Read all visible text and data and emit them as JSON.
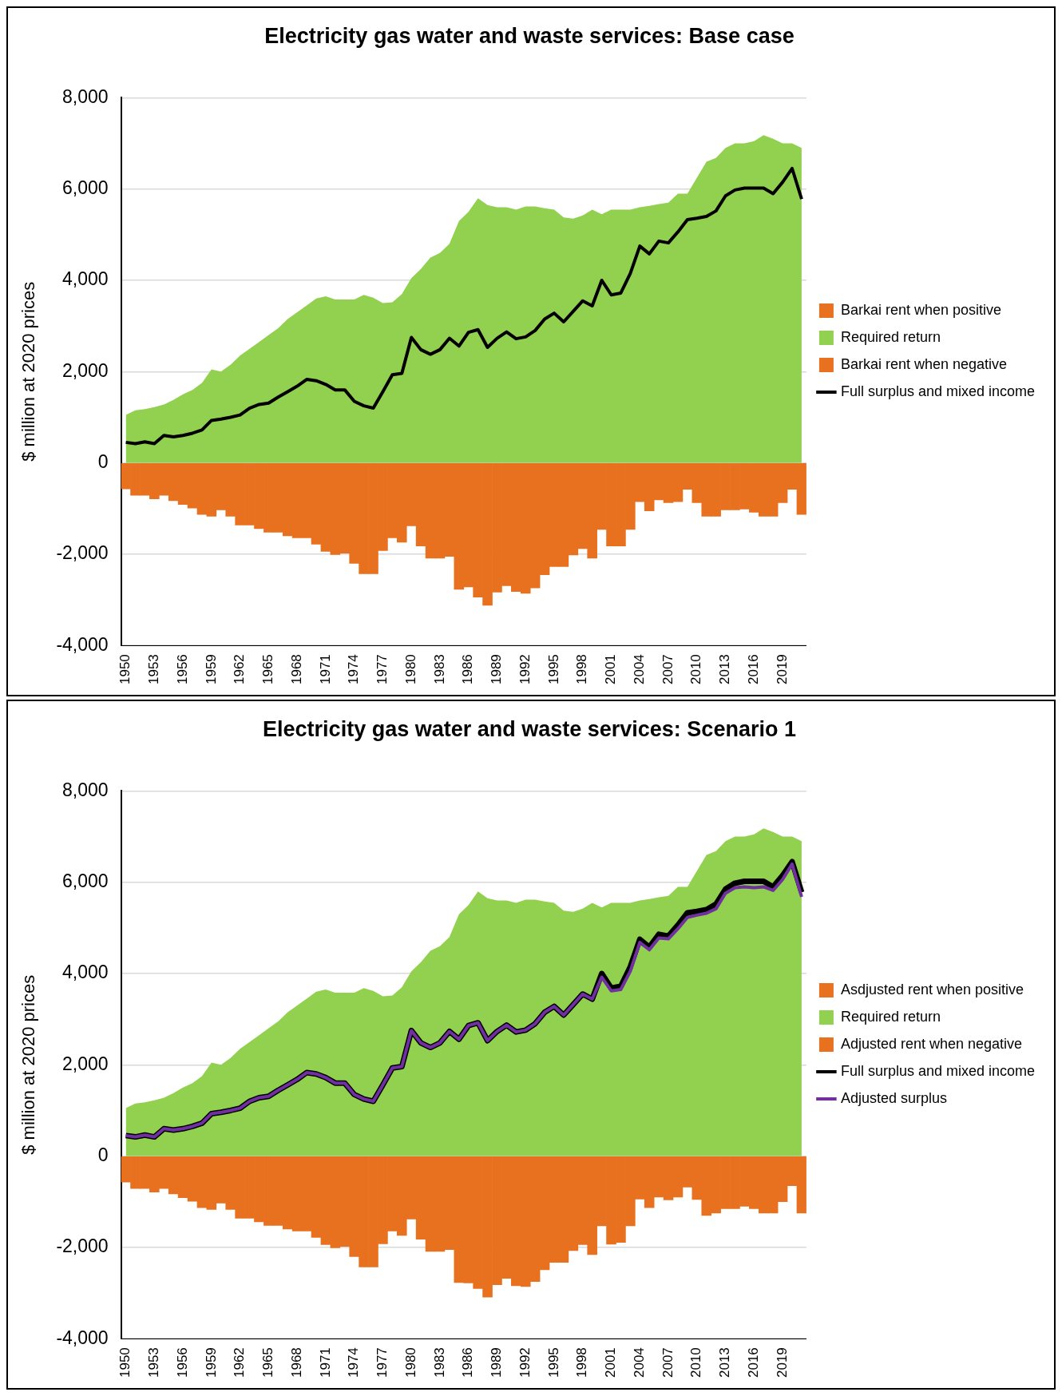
{
  "chart_data": [
    {
      "type": "area",
      "title": "Electricity gas water and waste services: Base case",
      "ylabel": "$ million at 2020 prices",
      "categories": [
        "1950",
        null,
        null,
        "1953",
        null,
        null,
        "1956",
        null,
        null,
        "1959",
        null,
        null,
        "1962",
        null,
        null,
        "1965",
        null,
        null,
        "1968",
        null,
        null,
        "1971",
        null,
        null,
        "1974",
        null,
        null,
        "1977",
        null,
        null,
        "1980",
        null,
        null,
        "1983",
        null,
        null,
        "1986",
        null,
        null,
        "1989",
        null,
        null,
        "1992",
        null,
        null,
        "1995",
        null,
        null,
        "1998",
        null,
        null,
        "2001",
        null,
        null,
        "2004",
        null,
        null,
        "2007",
        null,
        null,
        "2010",
        null,
        null,
        "2013",
        null,
        null,
        "2016",
        null,
        null,
        "2019",
        null,
        null
      ],
      "ylim": [
        -4000,
        8000
      ],
      "yticks": [
        {
          "value": -4000,
          "label": "-4,000"
        },
        {
          "value": -2000,
          "label": "-2,000"
        },
        0,
        {
          "value": 2000,
          "label": "2,000"
        },
        {
          "value": 4000,
          "label": "4,000"
        },
        {
          "value": 6000,
          "label": "6,000"
        },
        {
          "value": 8000,
          "label": "8,000"
        }
      ],
      "grid": "y",
      "legend": "right",
      "stacked": true,
      "marker": "none",
      "line_style": "solid",
      "series": [
        {
          "name": "Barkai rent when positive",
          "type": "bar",
          "color": "#e8711f",
          "values": [
            null,
            null,
            null,
            null,
            null,
            null,
            null,
            null,
            null,
            null,
            null,
            null,
            null,
            null,
            null,
            null,
            null,
            null,
            null,
            null,
            null,
            null,
            null,
            null,
            null,
            null,
            null,
            null,
            null,
            null,
            null,
            null,
            null,
            null,
            null,
            null,
            null,
            null,
            null,
            null,
            null,
            null,
            null,
            null,
            null,
            null,
            null,
            null,
            null,
            null,
            null,
            null,
            null,
            null,
            null,
            null,
            null,
            null,
            null,
            null,
            null,
            null,
            null,
            null,
            null,
            null,
            null,
            null,
            null,
            null,
            null,
            null
          ]
        },
        {
          "name": "Required return",
          "color": "#92d050",
          "values": [
            1050,
            1150,
            1180,
            1220,
            1280,
            1380,
            1500,
            1600,
            1750,
            2050,
            2000,
            2150,
            2350,
            2500,
            2650,
            2800,
            2950,
            3150,
            3300,
            3450,
            3600,
            3650,
            3580,
            3580,
            3580,
            3680,
            3620,
            3500,
            3520,
            3700,
            4050,
            4250,
            4500,
            4600,
            4800,
            5300,
            5500,
            5800,
            5650,
            5600,
            5600,
            5550,
            5620,
            5620,
            5580,
            5550,
            5380,
            5350,
            5420,
            5550,
            5450,
            5550,
            5550,
            5550,
            5600,
            5630,
            5670,
            5700,
            5900,
            5900,
            6250,
            6600,
            6680,
            6900,
            7000,
            7000,
            7050,
            7180,
            7100,
            7000,
            7000,
            6900
          ]
        },
        {
          "name": "Barkai rent when negative",
          "type": "bar",
          "color": "#e8711f",
          "values": [
            -570,
            -710,
            -710,
            -790,
            -710,
            -830,
            -910,
            -990,
            -1130,
            -1170,
            -1030,
            -1170,
            -1360,
            -1360,
            -1440,
            -1520,
            -1520,
            -1600,
            -1640,
            -1640,
            -1780,
            -1940,
            -2010,
            -1980,
            -2200,
            -2430,
            -2430,
            -1920,
            -1640,
            -1740,
            -1380,
            -1820,
            -2090,
            -2090,
            -2050,
            -2770,
            -2720,
            -2940,
            -3120,
            -2830,
            -2690,
            -2820,
            -2860,
            -2740,
            -2450,
            -2270,
            -2270,
            -2020,
            -1880,
            -2090,
            -1460,
            -1820,
            -1820,
            -1460,
            -850,
            -1050,
            -810,
            -870,
            -850,
            -580,
            -870,
            -1170,
            -1170,
            -1030,
            -1030,
            -1010,
            -1080,
            -1170,
            -1170,
            -870,
            -580,
            -1130
          ]
        },
        {
          "name": "Full surplus and mixed income",
          "type": "line",
          "color": "#000000",
          "values": [
            450,
            420,
            460,
            420,
            600,
            570,
            600,
            650,
            720,
            930,
            960,
            1000,
            1050,
            1200,
            1280,
            1310,
            1440,
            1560,
            1680,
            1830,
            1800,
            1720,
            1600,
            1600,
            1350,
            1250,
            1200,
            1560,
            1930,
            1960,
            2750,
            2480,
            2380,
            2480,
            2730,
            2560,
            2860,
            2920,
            2530,
            2730,
            2870,
            2720,
            2760,
            2900,
            3150,
            3280,
            3090,
            3320,
            3550,
            3440,
            4000,
            3680,
            3720,
            4150,
            4750,
            4580,
            4860,
            4820,
            5060,
            5330,
            5360,
            5400,
            5520,
            5850,
            5980,
            6020,
            6020,
            6020,
            5900,
            6150,
            6450,
            5780
          ]
        }
      ]
    },
    {
      "type": "area",
      "title": "Electricity gas water and waste services: Scenario 1",
      "ylabel": "$ million at 2020 prices",
      "categories": [
        "1950",
        null,
        null,
        "1953",
        null,
        null,
        "1956",
        null,
        null,
        "1959",
        null,
        null,
        "1962",
        null,
        null,
        "1965",
        null,
        null,
        "1968",
        null,
        null,
        "1971",
        null,
        null,
        "1974",
        null,
        null,
        "1977",
        null,
        null,
        "1980",
        null,
        null,
        "1983",
        null,
        null,
        "1986",
        null,
        null,
        "1989",
        null,
        null,
        "1992",
        null,
        null,
        "1995",
        null,
        null,
        "1998",
        null,
        null,
        "2001",
        null,
        null,
        "2004",
        null,
        null,
        "2007",
        null,
        null,
        "2010",
        null,
        null,
        "2013",
        null,
        null,
        "2016",
        null,
        null,
        "2019",
        null,
        null
      ],
      "ylim": [
        -4000,
        8000
      ],
      "yticks": [
        {
          "value": -4000,
          "label": "-4,000"
        },
        {
          "value": -2000,
          "label": "-2,000"
        },
        0,
        {
          "value": 2000,
          "label": "2,000"
        },
        {
          "value": 4000,
          "label": "4,000"
        },
        {
          "value": 6000,
          "label": "6,000"
        },
        {
          "value": 8000,
          "label": "8,000"
        }
      ],
      "grid": "y",
      "legend": "right",
      "stacked": true,
      "marker": "none",
      "line_style": "solid",
      "series": [
        {
          "name": "Asdjusted rent when positive",
          "type": "bar",
          "color": "#e8711f",
          "values": [
            null,
            null,
            null,
            null,
            null,
            null,
            null,
            null,
            null,
            null,
            null,
            null,
            null,
            null,
            null,
            null,
            null,
            null,
            null,
            null,
            null,
            null,
            null,
            null,
            null,
            null,
            null,
            null,
            null,
            null,
            null,
            null,
            null,
            null,
            null,
            null,
            null,
            null,
            null,
            null,
            null,
            null,
            null,
            null,
            null,
            null,
            null,
            null,
            null,
            null,
            null,
            null,
            null,
            null,
            null,
            null,
            null,
            null,
            null,
            null,
            null,
            null,
            null,
            null,
            null,
            null,
            null,
            null,
            null,
            null,
            null,
            null
          ]
        },
        {
          "name": "Required return",
          "color": "#92d050",
          "values": [
            1050,
            1150,
            1180,
            1220,
            1280,
            1380,
            1500,
            1600,
            1750,
            2050,
            2000,
            2150,
            2350,
            2500,
            2650,
            2800,
            2950,
            3150,
            3300,
            3450,
            3600,
            3650,
            3580,
            3580,
            3580,
            3680,
            3620,
            3500,
            3520,
            3700,
            4050,
            4250,
            4500,
            4600,
            4800,
            5300,
            5500,
            5800,
            5650,
            5600,
            5600,
            5550,
            5620,
            5620,
            5580,
            5550,
            5380,
            5350,
            5420,
            5550,
            5450,
            5550,
            5550,
            5550,
            5600,
            5630,
            5670,
            5700,
            5900,
            5900,
            6250,
            6600,
            6680,
            6900,
            7000,
            7000,
            7050,
            7180,
            7100,
            7000,
            7000,
            6900
          ]
        },
        {
          "name": "Adjusted rent when negative",
          "type": "bar",
          "color": "#e8711f",
          "values": [
            -570,
            -710,
            -710,
            -790,
            -710,
            -830,
            -910,
            -990,
            -1130,
            -1170,
            -1030,
            -1170,
            -1360,
            -1360,
            -1440,
            -1520,
            -1520,
            -1600,
            -1640,
            -1640,
            -1780,
            -1940,
            -2010,
            -1980,
            -2200,
            -2430,
            -2430,
            -1920,
            -1640,
            -1740,
            -1380,
            -1820,
            -2090,
            -2090,
            -2050,
            -2770,
            -2780,
            -2900,
            -3090,
            -2820,
            -2680,
            -2840,
            -2860,
            -2750,
            -2490,
            -2330,
            -2330,
            -2070,
            -1940,
            -2160,
            -1530,
            -1930,
            -1890,
            -1530,
            -940,
            -1130,
            -900,
            -960,
            -900,
            -680,
            -950,
            -1300,
            -1250,
            -1150,
            -1150,
            -1100,
            -1150,
            -1250,
            -1250,
            -1000,
            -650,
            -1250
          ]
        },
        {
          "name": "Full surplus and mixed income",
          "type": "line",
          "color": "#000000",
          "values": [
            450,
            420,
            460,
            420,
            600,
            570,
            600,
            650,
            720,
            930,
            960,
            1000,
            1050,
            1200,
            1280,
            1310,
            1440,
            1560,
            1680,
            1830,
            1800,
            1720,
            1600,
            1600,
            1350,
            1250,
            1200,
            1560,
            1930,
            1960,
            2750,
            2480,
            2380,
            2480,
            2730,
            2560,
            2860,
            2920,
            2530,
            2730,
            2870,
            2720,
            2760,
            2900,
            3150,
            3280,
            3090,
            3320,
            3550,
            3440,
            4000,
            3680,
            3720,
            4150,
            4750,
            4580,
            4860,
            4820,
            5060,
            5330,
            5360,
            5400,
            5520,
            5850,
            5980,
            6020,
            6020,
            6020,
            5900,
            6150,
            6450,
            5780
          ]
        },
        {
          "name": "Adjusted surplus",
          "type": "line",
          "color": "#7030a0",
          "values": [
            450,
            420,
            460,
            420,
            600,
            570,
            600,
            650,
            720,
            930,
            960,
            1000,
            1050,
            1200,
            1280,
            1310,
            1440,
            1560,
            1680,
            1830,
            1800,
            1720,
            1600,
            1600,
            1350,
            1250,
            1200,
            1560,
            1930,
            1960,
            2750,
            2480,
            2380,
            2480,
            2730,
            2560,
            2860,
            2920,
            2530,
            2730,
            2870,
            2720,
            2760,
            2900,
            3150,
            3280,
            3090,
            3320,
            3550,
            3440,
            3920,
            3620,
            3650,
            4050,
            4680,
            4520,
            4780,
            4760,
            4980,
            5230,
            5280,
            5320,
            5420,
            5760,
            5880,
            5900,
            5880,
            5900,
            5820,
            6060,
            6400,
            5680
          ]
        }
      ]
    }
  ]
}
